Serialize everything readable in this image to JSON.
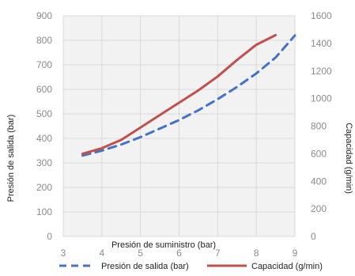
{
  "chart_data": {
    "type": "line",
    "title": "",
    "xlabel": "Presión de suministro (bar)",
    "ylabel_left": "Presión de salida (bar)",
    "ylabel_right": "Capacidad (g/min)",
    "x_ticks": [
      "3",
      "4",
      "5",
      "6",
      "7",
      "8",
      "9"
    ],
    "xlim": [
      3,
      9
    ],
    "ylim_left": [
      0,
      900
    ],
    "y_ticks_left": [
      "0",
      "100",
      "200",
      "300",
      "400",
      "500",
      "600",
      "700",
      "800",
      "900"
    ],
    "ylim_right": [
      0,
      1600
    ],
    "y_ticks_right": [
      "0",
      "200",
      "400",
      "600",
      "800",
      "1000",
      "1200",
      "1400",
      "1600"
    ],
    "grid": true,
    "legend_position": "bottom",
    "series": [
      {
        "name": "Presión de salida (bar)",
        "axis": "left",
        "style": "dashed",
        "color": "#4472c4",
        "x": [
          3.5,
          4,
          4.5,
          5,
          5.5,
          6,
          6.5,
          7,
          7.5,
          8,
          8.5,
          9
        ],
        "y": [
          330,
          350,
          375,
          405,
          440,
          475,
          515,
          560,
          610,
          665,
          730,
          820
        ]
      },
      {
        "name": "Capacidad (g/min)",
        "axis": "right",
        "style": "solid",
        "color": "#c0504d",
        "x": [
          3.5,
          4,
          4.5,
          5,
          5.5,
          6,
          6.5,
          7,
          7.5,
          8,
          8.5
        ],
        "y": [
          600,
          640,
          700,
          790,
          880,
          970,
          1060,
          1160,
          1280,
          1390,
          1460
        ]
      }
    ]
  }
}
